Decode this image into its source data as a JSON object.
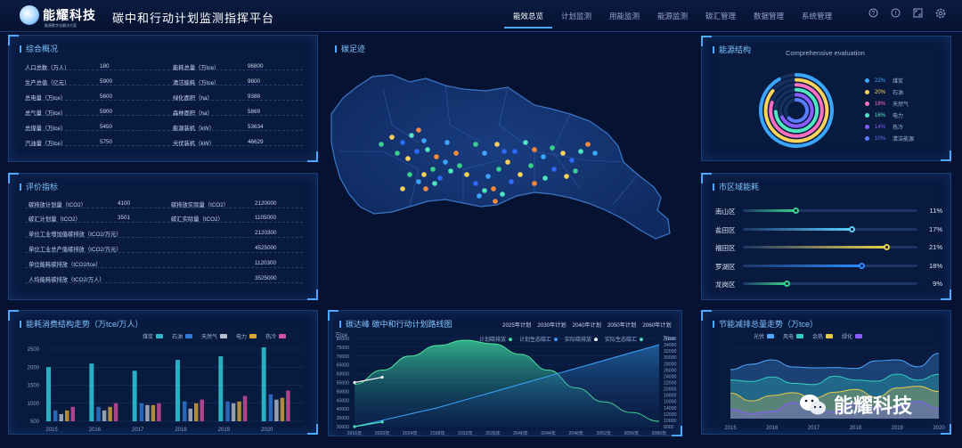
{
  "header": {
    "logo_name": "能耀科技",
    "logo_sub": "能源数字化解决方案",
    "title": "碳中和行动计划监测指挥平台",
    "nav": [
      "能效总览",
      "计划监测",
      "用能监测",
      "能源监测",
      "碳汇管理",
      "数据管理",
      "系统管理"
    ],
    "active_nav": 0,
    "icons": [
      "help-icon",
      "info-icon",
      "fullscreen-icon",
      "settings-icon"
    ]
  },
  "overview": {
    "title": "综合概况",
    "rows": [
      [
        {
          "label": "人口总数（万人）",
          "value": "180"
        },
        {
          "label": "能耗总量（万tce）",
          "value": "96800"
        }
      ],
      [
        {
          "label": "生产总值（亿元）",
          "value": "5900"
        },
        {
          "label": "清洁能耗（万tce）",
          "value": "9800"
        }
      ],
      [
        {
          "label": "总电量（万tce）",
          "value": "5600"
        },
        {
          "label": "绿化面积（ha）",
          "value": "9388"
        }
      ],
      [
        {
          "label": "总气量（万tce）",
          "value": "5900"
        },
        {
          "label": "森林面积（ha）",
          "value": "5869"
        }
      ],
      [
        {
          "label": "总煤量（万tce）",
          "value": "5450"
        },
        {
          "label": "能源装机（kW）",
          "value": "53634"
        }
      ],
      [
        {
          "label": "汽油量（万tce）",
          "value": "5750"
        },
        {
          "label": "光伏装机（kW）",
          "value": "46629"
        }
      ]
    ]
  },
  "eval": {
    "title": "评价指标",
    "rows": [
      {
        "l1": "碳排放计划量（tCO2）",
        "v1": "4100",
        "l2": "碳排放实际量（tCO2）",
        "v2": "2120000"
      },
      {
        "l1": "碳汇计划量（tCO2）",
        "v1": "3501",
        "l2": "碳汇实际量（tCO2）",
        "v2": "1105000"
      },
      {
        "l1": "单位工业增加值碳排放（tCO2/万元）",
        "v1": "",
        "l2": "",
        "v2": "2120300"
      },
      {
        "l1": "单位工业总产值碳排放（tCO2/万元）",
        "v1": "",
        "l2": "",
        "v2": "4525000"
      },
      {
        "l1": "单位能耗碳排放（tCO2/tce）",
        "v1": "",
        "l2": "",
        "v2": "1120300"
      },
      {
        "l1": "人均能耗碳排放（tCO2/万人）",
        "v1": "",
        "l2": "",
        "v2": "3525000"
      }
    ]
  },
  "footprint": {
    "title": "碳足迹"
  },
  "energy_structure": {
    "title": "能源结构",
    "subtitle": "Comprehensive evaluation",
    "items": [
      {
        "pct": "22%",
        "name": "煤炭",
        "color": "#3aa6ff"
      },
      {
        "pct": "20%",
        "name": "石油",
        "color": "#ffd25a"
      },
      {
        "pct": "18%",
        "name": "天然气",
        "color": "#ff6fc0"
      },
      {
        "pct": "16%",
        "name": "电力",
        "color": "#4fe6c0"
      },
      {
        "pct": "14%",
        "name": "热冷",
        "color": "#8a5cff"
      },
      {
        "pct": "10%",
        "name": "清洁能源",
        "color": "#5a7cff"
      }
    ]
  },
  "district": {
    "title": "市区域能耗",
    "items": [
      {
        "name": "南山区",
        "pct": "11%",
        "value": 0.3,
        "color": "#39d28c"
      },
      {
        "name": "盐田区",
        "pct": "17%",
        "value": 0.62,
        "color": "#5ad0ff"
      },
      {
        "name": "福田区",
        "pct": "21%",
        "value": 0.82,
        "color": "#e8d24a"
      },
      {
        "name": "罗湖区",
        "pct": "18%",
        "value": 0.68,
        "color": "#2a8cff"
      },
      {
        "name": "龙岗区",
        "pct": "9%",
        "value": 0.25,
        "color": "#39d28c"
      }
    ]
  },
  "consumption": {
    "title": "能耗消费结构走势（万tce/万人）",
    "legend": [
      {
        "name": "煤炭",
        "color": "#2bb7c9"
      },
      {
        "name": "石油",
        "color": "#2f7bd6"
      },
      {
        "name": "天然气",
        "color": "#b8c0d0"
      },
      {
        "name": "电力",
        "color": "#d9a63a"
      },
      {
        "name": "热冷",
        "color": "#d64fa0"
      }
    ],
    "yticks": [
      "2500",
      "2000",
      "1500",
      "1000",
      "500"
    ],
    "years": [
      "2015",
      "2016",
      "2017",
      "2018",
      "2019",
      "2020"
    ],
    "chart_data": {
      "type": "bar",
      "categories": [
        "2015",
        "2016",
        "2017",
        "2018",
        "2019",
        "2020"
      ],
      "series": [
        {
          "name": "煤炭",
          "values": [
            2000,
            2100,
            1900,
            2200,
            2300,
            2550
          ]
        },
        {
          "name": "石油",
          "values": [
            800,
            900,
            1000,
            1050,
            1050,
            1250
          ]
        },
        {
          "name": "天然气",
          "values": [
            700,
            800,
            950,
            850,
            1000,
            1100
          ]
        },
        {
          "name": "电力",
          "values": [
            800,
            900,
            950,
            1000,
            1050,
            1150
          ]
        },
        {
          "name": "热冷",
          "values": [
            900,
            1000,
            1000,
            1100,
            1200,
            1350
          ]
        }
      ],
      "ylim": [
        500,
        2500
      ]
    }
  },
  "carbon_peak": {
    "title": "碳达峰 碳中和行动计划路线图",
    "plans": [
      "2025年计划",
      "2030年计划",
      "2040年计划",
      "2050年计划",
      "2060年计划"
    ],
    "legend": [
      {
        "name": "计划碳排放",
        "color": "#4fe6a0"
      },
      {
        "name": "计划生态碳汇",
        "color": "#3aa6ff"
      },
      {
        "name": "实际碳排放",
        "color": "#ffffff"
      },
      {
        "name": "实际生态碳汇",
        "color": "#4fe6c0"
      }
    ],
    "left_unit": "万tce",
    "right_unit": "万tce",
    "yticks_left": [
      "80000",
      "75000",
      "70000",
      "65000",
      "60000",
      "55000",
      "50000",
      "45000",
      "40000",
      "35000",
      "30000"
    ],
    "yticks_right": [
      "36000",
      "34000",
      "32000",
      "30000",
      "28000",
      "26000",
      "24000",
      "22000",
      "20000",
      "18000",
      "16000",
      "14000",
      "12000",
      "10000",
      "8000"
    ],
    "xticks": [
      "2016年",
      "2020年",
      "2024年",
      "2028年",
      "2032年",
      "2036年",
      "2040年",
      "2044年",
      "2048年",
      "2052年",
      "2056年",
      "2060年"
    ],
    "chart_data": {
      "type": "area",
      "x": [
        "2016年",
        "2020年",
        "2024年",
        "2028年",
        "2032年",
        "2036年",
        "2040年",
        "2044年",
        "2048年",
        "2052年",
        "2056年",
        "2060年"
      ],
      "series": [
        {
          "name": "计划碳排放",
          "values": [
            54000,
            62000,
            70000,
            76000,
            79000,
            77000,
            71000,
            62000,
            52000,
            44000,
            38000,
            33000
          ]
        },
        {
          "name": "计划生态碳汇",
          "values": [
            8000,
            10000,
            12000,
            14000,
            16500,
            19000,
            21500,
            24000,
            26500,
            29000,
            31500,
            34000
          ]
        },
        {
          "name": "实际碳排放",
          "values": [
            55000,
            58000,
            null,
            null,
            null,
            null,
            null,
            null,
            null,
            null,
            null,
            null
          ]
        },
        {
          "name": "实际生态碳汇",
          "values": [
            8000,
            9500,
            null,
            null,
            null,
            null,
            null,
            null,
            null,
            null,
            null,
            null
          ]
        }
      ],
      "ylim": [
        30000,
        80000
      ],
      "ylim_right": [
        8000,
        36000
      ]
    }
  },
  "saving": {
    "title": "节能减排总量走势（万tce）",
    "legend": [
      {
        "name": "光伏",
        "color": "#4fa8ff"
      },
      {
        "name": "风电",
        "color": "#2fd0c0"
      },
      {
        "name": "余热",
        "color": "#e8c84a"
      },
      {
        "name": "绿化",
        "color": "#8a5cff"
      }
    ],
    "years": [
      "2015",
      "2016",
      "2017",
      "2018",
      "2019",
      "2020"
    ],
    "chart_data": {
      "type": "area",
      "categories": [
        "2015",
        "2016",
        "2017",
        "2018",
        "2019",
        "2020"
      ],
      "series": [
        {
          "name": "光伏",
          "values": [
            55,
            62,
            58,
            60,
            64,
            70
          ]
        },
        {
          "name": "风电",
          "values": [
            40,
            45,
            42,
            44,
            46,
            50
          ]
        },
        {
          "name": "余热",
          "values": [
            25,
            28,
            26,
            30,
            32,
            34
          ]
        },
        {
          "name": "绿化",
          "values": [
            10,
            12,
            11,
            13,
            14,
            15
          ]
        }
      ]
    }
  },
  "watermark": "能耀科技"
}
